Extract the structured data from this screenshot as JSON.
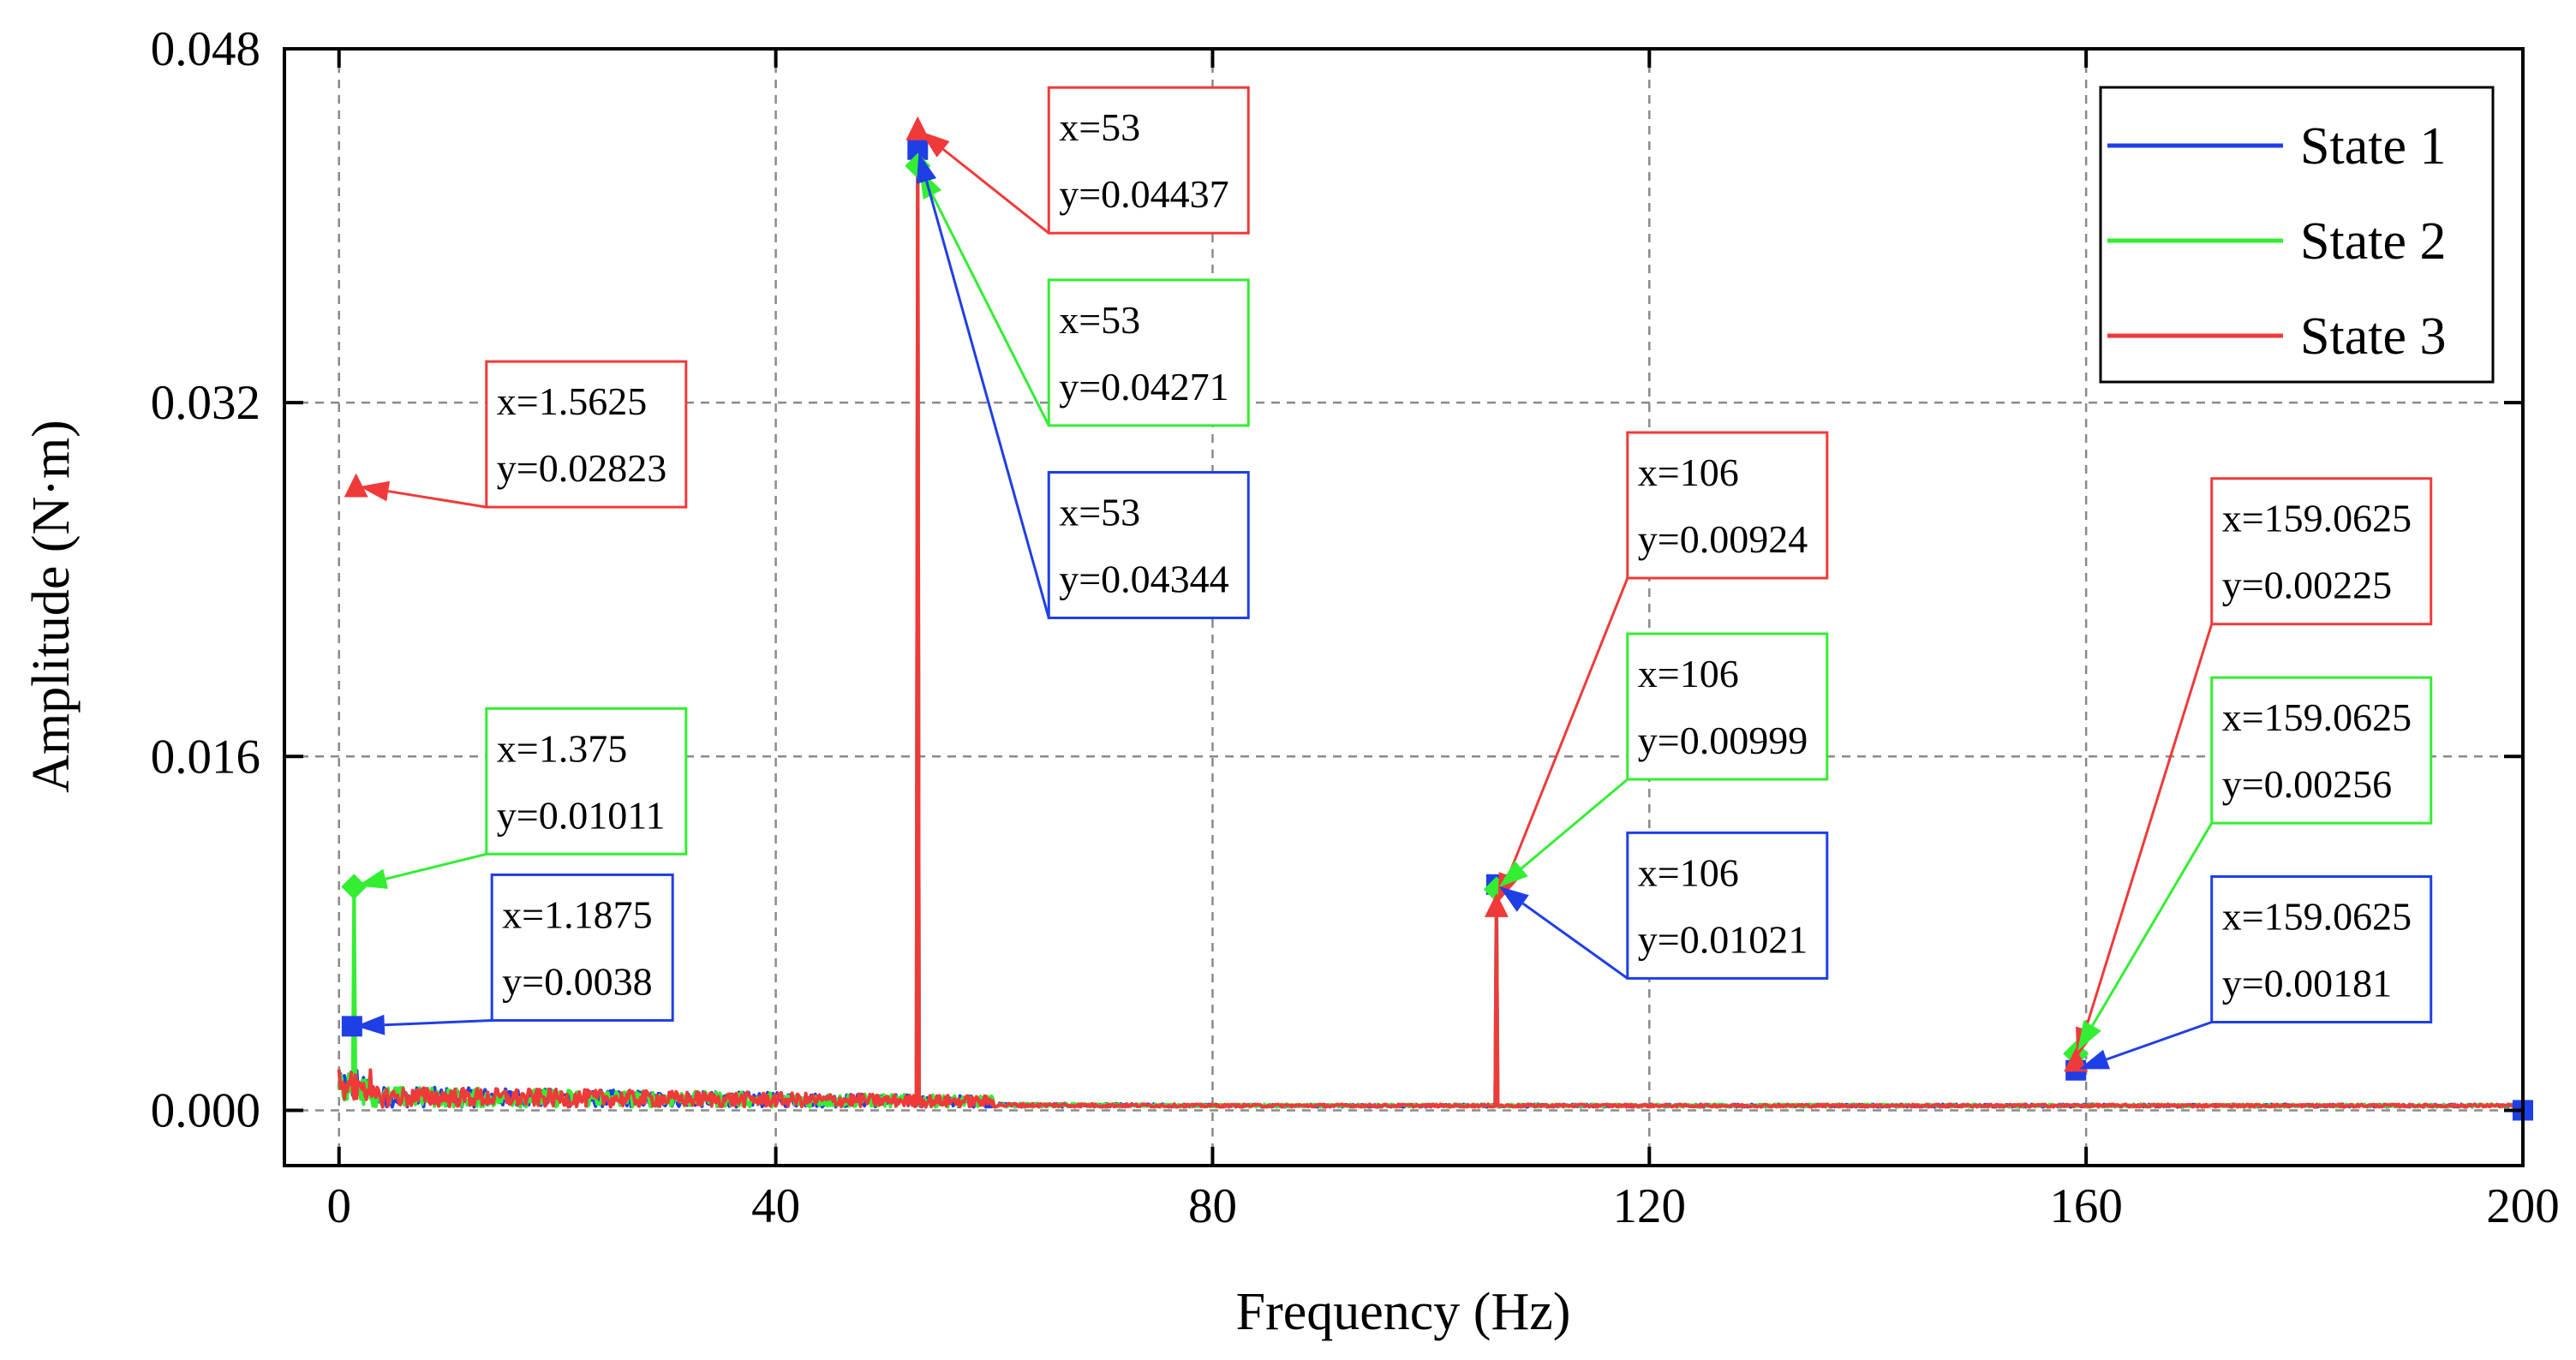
{
  "chart_data": {
    "type": "line",
    "title": "",
    "xlabel": "Frequency (Hz)",
    "ylabel": "Amplitude (N·m)",
    "xlim": [
      -5,
      200
    ],
    "ylim": [
      -0.0025,
      0.048
    ],
    "x_ticks": [
      0,
      40,
      80,
      120,
      160,
      200
    ],
    "y_ticks": [
      0.0,
      0.016,
      0.032,
      0.048
    ],
    "x_tick_labels": [
      "0",
      "40",
      "80",
      "120",
      "160",
      "200"
    ],
    "y_tick_labels": [
      "0.000",
      "0.016",
      "0.032",
      "0.048"
    ],
    "grid": true,
    "legend_position": "top-right",
    "series": [
      {
        "name": "State 1",
        "color": "#1f3fe6",
        "marker": "square",
        "peaks": [
          {
            "x": 1.1875,
            "y": 0.0038
          },
          {
            "x": 53,
            "y": 0.04344
          },
          {
            "x": 106,
            "y": 0.01021
          },
          {
            "x": 159.0625,
            "y": 0.00181
          },
          {
            "x": 200,
            "y": 0.0
          }
        ]
      },
      {
        "name": "State 2",
        "color": "#33ee33",
        "marker": "diamond",
        "peaks": [
          {
            "x": 1.375,
            "y": 0.01011
          },
          {
            "x": 53,
            "y": 0.04271
          },
          {
            "x": 106,
            "y": 0.00999
          },
          {
            "x": 159.0625,
            "y": 0.00256
          }
        ]
      },
      {
        "name": "State 3",
        "color": "#f03a3a",
        "marker": "triangle",
        "peaks": [
          {
            "x": 1.5625,
            "y": 0.02823
          },
          {
            "x": 53,
            "y": 0.04437
          },
          {
            "x": 106,
            "y": 0.00924
          },
          {
            "x": 159.0625,
            "y": 0.00225
          }
        ]
      }
    ],
    "annotations": [
      {
        "series": "State 3",
        "x": 1.5625,
        "y": 0.02823,
        "line1": "x=1.5625",
        "line2": "y=0.02823",
        "box_x": 13.5,
        "box_y": 0.03386
      },
      {
        "series": "State 2",
        "x": 1.375,
        "y": 0.01011,
        "line1": "x=1.375",
        "line2": "y=0.01011",
        "box_x": 13.5,
        "box_y": 0.01817
      },
      {
        "series": "State 1",
        "x": 1.1875,
        "y": 0.0038,
        "line1": "x=1.1875",
        "line2": "y=0.0038",
        "box_x": 14.0,
        "box_y": 0.01065
      },
      {
        "series": "State 3",
        "x": 53,
        "y": 0.04437,
        "line1": "x=53",
        "line2": "y=0.04437",
        "box_x": 65.0,
        "box_y": 0.04625
      },
      {
        "series": "State 2",
        "x": 53,
        "y": 0.04271,
        "line1": "x=53",
        "line2": "y=0.04271",
        "box_x": 65.0,
        "box_y": 0.03755
      },
      {
        "series": "State 1",
        "x": 53,
        "y": 0.04344,
        "line1": "x=53",
        "line2": "y=0.04344",
        "box_x": 65.0,
        "box_y": 0.02885
      },
      {
        "series": "State 3",
        "x": 106,
        "y": 0.00924,
        "line1": "x=106",
        "line2": "y=0.00924",
        "box_x": 118.0,
        "box_y": 0.03065
      },
      {
        "series": "State 2",
        "x": 106,
        "y": 0.00999,
        "line1": "x=106",
        "line2": "y=0.00999",
        "box_x": 118.0,
        "box_y": 0.02155
      },
      {
        "series": "State 1",
        "x": 106,
        "y": 0.01021,
        "line1": "x=106",
        "line2": "y=0.01021",
        "box_x": 118.0,
        "box_y": 0.01255
      },
      {
        "series": "State 3",
        "x": 159.0625,
        "y": 0.00225,
        "line1": "x=159.0625",
        "line2": "y=0.00225",
        "box_x": 171.5,
        "box_y": 0.02857
      },
      {
        "series": "State 2",
        "x": 159.0625,
        "y": 0.00256,
        "line1": "x=159.0625",
        "line2": "y=0.00256",
        "box_x": 171.5,
        "box_y": 0.01957
      },
      {
        "series": "State 1",
        "x": 159.0625,
        "y": 0.00181,
        "line1": "x=159.0625",
        "line2": "y=0.00181",
        "box_x": 171.5,
        "box_y": 0.01057
      }
    ]
  }
}
